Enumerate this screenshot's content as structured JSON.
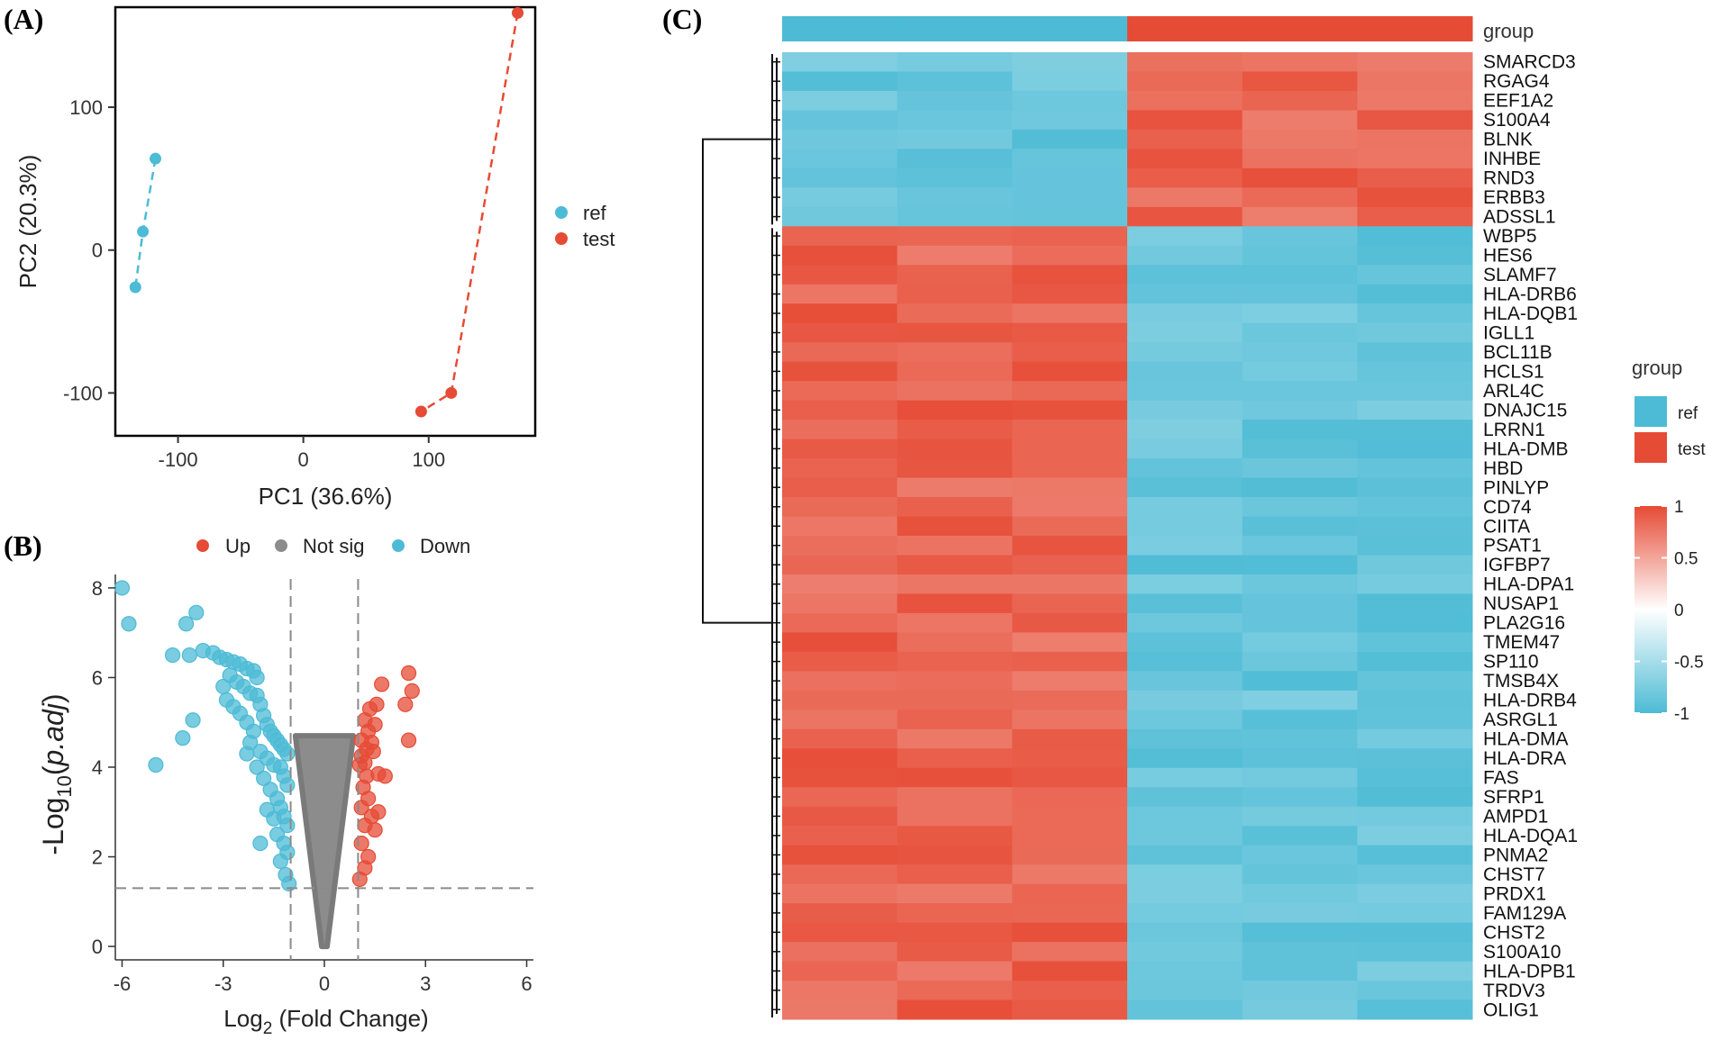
{
  "panels": {
    "a_label": "(A)",
    "b_label": "(B)",
    "c_label": "(C)"
  },
  "colors": {
    "ref": "#4DBBD5",
    "test": "#E64B35",
    "not_sig": "#8c8c8c"
  },
  "chart_data": [
    {
      "type": "scatter",
      "panel": "A",
      "xlabel": "PC1 (36.6%)",
      "ylabel": "PC2 (20.3%)",
      "xlim": [
        -150,
        185
      ],
      "ylim": [
        -130,
        170
      ],
      "xticks": [
        -100,
        0,
        100
      ],
      "yticks": [
        -100,
        0,
        100
      ],
      "grid": false,
      "legend_position": "right",
      "series": [
        {
          "name": "ref",
          "x": [
            -118,
            -128,
            -134
          ],
          "y": [
            64,
            13,
            -26
          ]
        },
        {
          "name": "test",
          "x": [
            171,
            118,
            94
          ],
          "y": [
            166,
            -100,
            -113
          ]
        }
      ]
    },
    {
      "type": "scatter",
      "panel": "B",
      "xlabel": "Log2 (Fold Change)",
      "ylabel": "-Log10(p.adj)",
      "xlim": [
        -6.2,
        6.2
      ],
      "ylim": [
        -0.3,
        8.3
      ],
      "xticks": [
        -6,
        -3,
        0,
        3,
        6
      ],
      "yticks": [
        0,
        2,
        4,
        6,
        8
      ],
      "thresholds": {
        "x": [
          -1,
          1
        ],
        "y": 1.3
      },
      "legend_position": "top",
      "series": [
        {
          "name": "Up",
          "points": [
            [
              2.5,
              6.1
            ],
            [
              2.6,
              5.7
            ],
            [
              2.4,
              5.4
            ],
            [
              1.7,
              5.85
            ],
            [
              1.55,
              5.4
            ],
            [
              1.35,
              5.3
            ],
            [
              1.2,
              5.05
            ],
            [
              1.5,
              4.95
            ],
            [
              1.3,
              4.8
            ],
            [
              1.1,
              4.6
            ],
            [
              1.4,
              4.55
            ],
            [
              1.25,
              4.4
            ],
            [
              1.1,
              4.25
            ],
            [
              1.2,
              4.1
            ],
            [
              1.45,
              4.35
            ],
            [
              1.05,
              4.05
            ],
            [
              1.25,
              3.8
            ],
            [
              1.15,
              3.55
            ],
            [
              1.3,
              3.3
            ],
            [
              1.1,
              3.1
            ],
            [
              1.6,
              3.85
            ],
            [
              1.8,
              3.8
            ],
            [
              2.5,
              4.6
            ],
            [
              1.4,
              2.9
            ],
            [
              1.2,
              2.7
            ],
            [
              1.6,
              3.0
            ],
            [
              1.5,
              2.6
            ],
            [
              1.1,
              2.3
            ],
            [
              1.3,
              2.0
            ],
            [
              1.2,
              1.75
            ],
            [
              1.05,
              1.5
            ]
          ]
        },
        {
          "name": "Not sig",
          "points": []
        },
        {
          "name": "Down",
          "points": [
            [
              -6.0,
              8.0
            ],
            [
              -5.8,
              7.2
            ],
            [
              -3.8,
              7.45
            ],
            [
              -4.1,
              7.2
            ],
            [
              -3.6,
              6.6
            ],
            [
              -4.0,
              6.5
            ],
            [
              -4.5,
              6.5
            ],
            [
              -3.3,
              6.55
            ],
            [
              -3.1,
              6.45
            ],
            [
              -2.9,
              6.4
            ],
            [
              -2.7,
              6.35
            ],
            [
              -2.5,
              6.3
            ],
            [
              -2.3,
              6.2
            ],
            [
              -2.1,
              6.15
            ],
            [
              -2.0,
              6.0
            ],
            [
              -2.8,
              6.05
            ],
            [
              -2.6,
              5.9
            ],
            [
              -2.4,
              5.8
            ],
            [
              -2.2,
              5.65
            ],
            [
              -3.0,
              5.8
            ],
            [
              -2.9,
              5.5
            ],
            [
              -2.7,
              5.35
            ],
            [
              -2.5,
              5.2
            ],
            [
              -2.3,
              5.0
            ],
            [
              -2.0,
              5.6
            ],
            [
              -1.9,
              5.4
            ],
            [
              -1.8,
              5.15
            ],
            [
              -1.7,
              4.95
            ],
            [
              -1.6,
              4.8
            ],
            [
              -1.5,
              4.7
            ],
            [
              -1.4,
              4.6
            ],
            [
              -1.3,
              4.5
            ],
            [
              -1.2,
              4.4
            ],
            [
              -1.1,
              4.3
            ],
            [
              -2.1,
              4.8
            ],
            [
              -2.2,
              4.55
            ],
            [
              -1.9,
              4.35
            ],
            [
              -1.7,
              4.2
            ],
            [
              -1.5,
              4.05
            ],
            [
              -1.3,
              4.0
            ],
            [
              -1.2,
              3.8
            ],
            [
              -1.1,
              3.6
            ],
            [
              -1.8,
              3.75
            ],
            [
              -1.6,
              3.5
            ],
            [
              -1.4,
              3.3
            ],
            [
              -1.3,
              3.1
            ],
            [
              -1.2,
              2.9
            ],
            [
              -1.1,
              2.7
            ],
            [
              -1.5,
              2.85
            ],
            [
              -1.7,
              3.05
            ],
            [
              -1.4,
              2.5
            ],
            [
              -1.2,
              2.3
            ],
            [
              -1.1,
              2.1
            ],
            [
              -1.3,
              1.9
            ],
            [
              -1.15,
              1.6
            ],
            [
              -1.05,
              1.4
            ],
            [
              -3.9,
              5.05
            ],
            [
              -4.2,
              4.65
            ],
            [
              -5.0,
              4.05
            ],
            [
              -1.9,
              2.3
            ],
            [
              -2.0,
              4.0
            ],
            [
              -2.3,
              4.3
            ]
          ]
        }
      ]
    },
    {
      "type": "heatmap",
      "panel": "C",
      "annotation_label": "group",
      "columns": [
        "ref",
        "ref",
        "ref",
        "test",
        "test",
        "test"
      ],
      "rows": [
        "SMARCD3",
        "RGAG4",
        "EEF1A2",
        "S100A4",
        "BLNK",
        "INHBE",
        "RND3",
        "ERBB3",
        "ADSSL1",
        "WBP5",
        "HES6",
        "SLAMF7",
        "HLA-DRB6",
        "HLA-DQB1",
        "IGLL1",
        "BCL11B",
        "HCLS1",
        "ARL4C",
        "DNAJC15",
        "LRRN1",
        "HLA-DMB",
        "HBD",
        "PINLYP",
        "CD74",
        "CIITA",
        "PSAT1",
        "IGFBP7",
        "HLA-DPA1",
        "NUSAP1",
        "PLA2G16",
        "TMEM47",
        "SP110",
        "TMSB4X",
        "HLA-DRB4",
        "ASRGL1",
        "HLA-DMA",
        "HLA-DRA",
        "FAS",
        "SFRP1",
        "AMPD1",
        "HLA-DQA1",
        "PNMA2",
        "CHST7",
        "PRDX1",
        "FAM129A",
        "CHST2",
        "S100A10",
        "HLA-DPB1",
        "TRDV3",
        "OLIG1"
      ],
      "up_in_ref_from_row": 9,
      "value_range": [
        -1,
        1
      ],
      "colorbar_ticks": [
        "1",
        "0.5",
        "0",
        "-0.5",
        "-1"
      ],
      "legend": {
        "title": "group",
        "entries": [
          {
            "label": "ref"
          },
          {
            "label": "test"
          }
        ]
      }
    }
  ]
}
